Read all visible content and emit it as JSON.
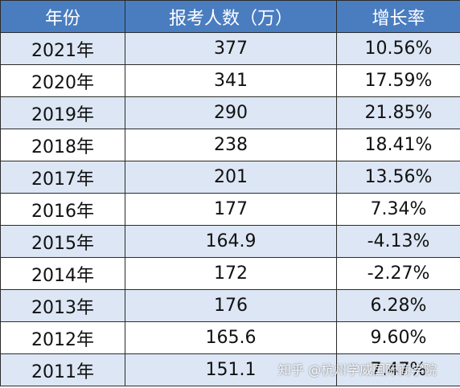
{
  "table": {
    "header": [
      "年份",
      "报考人数（万）",
      "增长率"
    ],
    "rows": [
      [
        "2021年",
        "377",
        "10.56%"
      ],
      [
        "2020年",
        "341",
        "17.59%"
      ],
      [
        "2019年",
        "290",
        "21.85%"
      ],
      [
        "2018年",
        "238",
        "18.41%"
      ],
      [
        "2017年",
        "201",
        "13.56%"
      ],
      [
        "2016年",
        "177",
        "7.34%"
      ],
      [
        "2015年",
        "164.9",
        "-4.13%"
      ],
      [
        "2014年",
        "172",
        "-2.27%"
      ],
      [
        "2013年",
        "176",
        "6.28%"
      ],
      [
        "2012年",
        "165.6",
        "9.60%"
      ],
      [
        "2011年",
        "151.1",
        "7.47%"
      ]
    ]
  },
  "watermark": "知乎 @杭州学威国际商学院"
}
